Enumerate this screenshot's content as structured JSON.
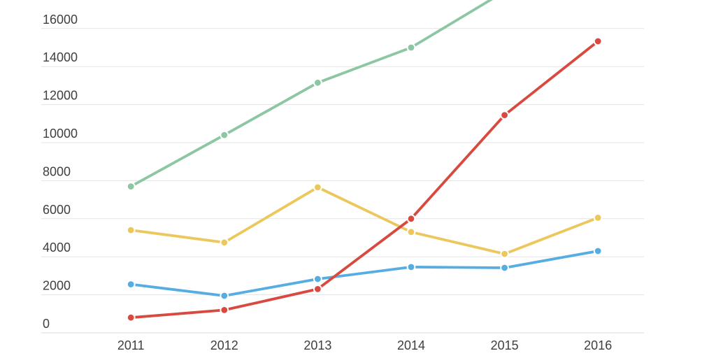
{
  "chart_data": {
    "type": "line",
    "title": "",
    "xlabel": "",
    "ylabel": "",
    "x": [
      "2011",
      "2012",
      "2013",
      "2014",
      "2015",
      "2016"
    ],
    "y_ticks": [
      0,
      2000,
      4000,
      6000,
      8000,
      10000,
      12000,
      14000,
      16000
    ],
    "y_tick_labels": [
      "0",
      "2000",
      "4000",
      "6000",
      "8000",
      "10000",
      "12000",
      "14000",
      "16000"
    ],
    "ylim_visible": [
      0,
      17500
    ],
    "grid": true,
    "legend": false,
    "background_color": "#ffffff",
    "gridline_color": "#e3e3e3",
    "zero_line_color": "#dadada",
    "text_color": "#3f3f3f",
    "marker_halo_color": "#ffffff",
    "series": [
      {
        "name": "green-series",
        "color": "#8CC6A2",
        "values": [
          7700,
          10400,
          13150,
          15000,
          17950,
          null
        ],
        "clipped_top": true
      },
      {
        "name": "yellow-series",
        "color": "#ECC85C",
        "values": [
          5400,
          4750,
          7650,
          5300,
          4150,
          6050
        ],
        "clipped_top": false
      },
      {
        "name": "blue-series",
        "color": "#55ADE2",
        "values": [
          2550,
          1950,
          2830,
          3460,
          3420,
          4300
        ],
        "clipped_top": false
      },
      {
        "name": "red-series",
        "color": "#D8493F",
        "values": [
          800,
          1200,
          2300,
          6000,
          11450,
          15330
        ],
        "clipped_top": false
      }
    ]
  }
}
